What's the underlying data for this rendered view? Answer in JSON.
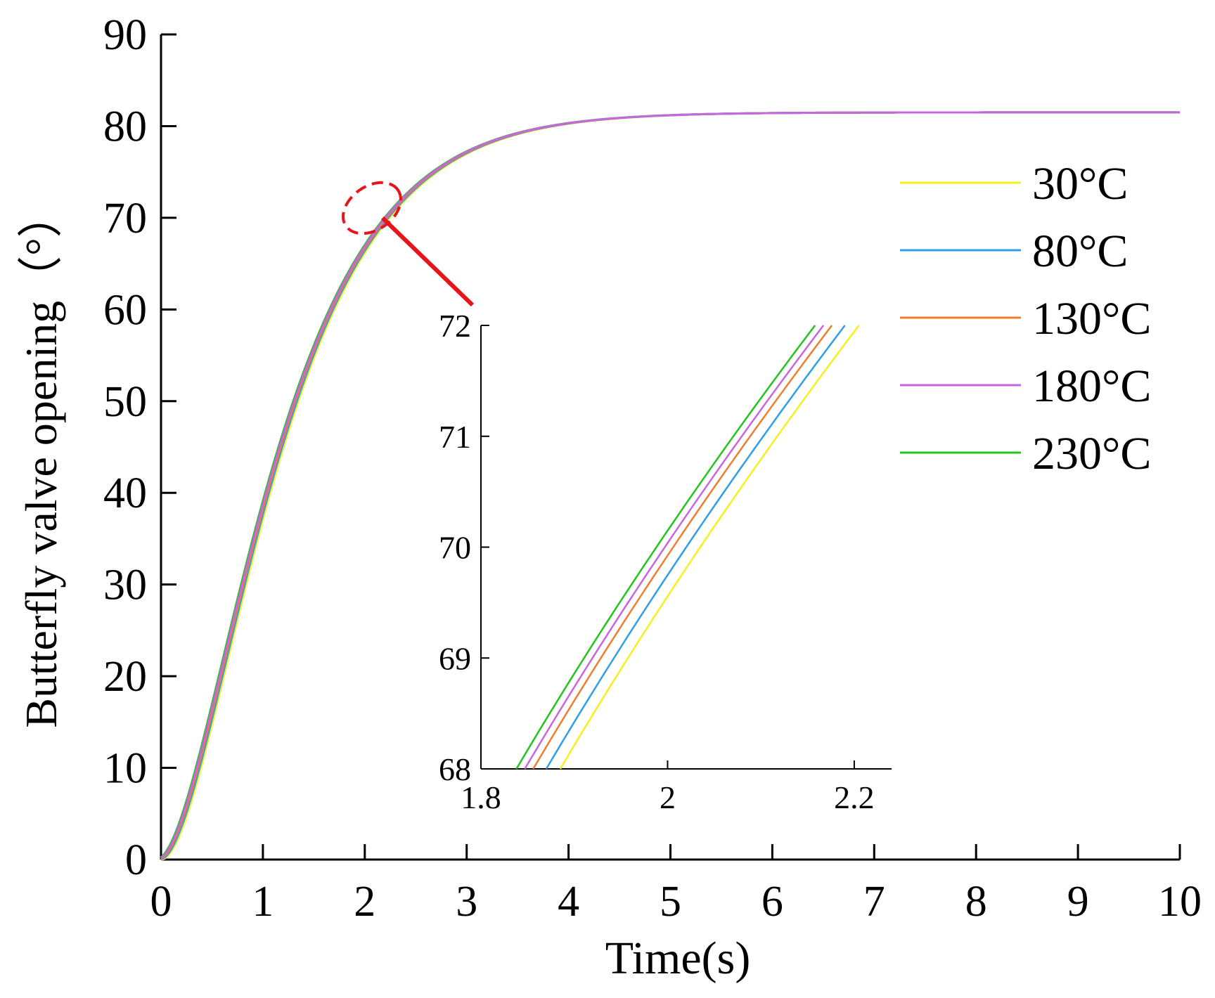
{
  "chart_data": [
    {
      "id": "main",
      "type": "line",
      "title": "",
      "xlabel": "Time(s)",
      "ylabel": "Butterfly valve opening（°）",
      "xlim": [
        0,
        10
      ],
      "ylim": [
        0,
        90
      ],
      "xticks": [
        0,
        1,
        2,
        3,
        4,
        5,
        6,
        7,
        8,
        9,
        10
      ],
      "yticks": [
        0,
        10,
        20,
        30,
        40,
        50,
        60,
        70,
        80,
        90
      ],
      "grid": false,
      "legend_position": "right",
      "model": {
        "final_value": 81.5,
        "time_constant": 0.65
      },
      "series": [
        {
          "name": "30°C",
          "color": "#f7f01e",
          "time_shift": 0.0
        },
        {
          "name": "80°C",
          "color": "#2f9ee8",
          "time_shift": -0.014
        },
        {
          "name": "130°C",
          "color": "#f07d2e",
          "time_shift": -0.028
        },
        {
          "name": "180°C",
          "color": "#c766e0",
          "time_shift": -0.04
        },
        {
          "name": "230°C",
          "color": "#22c41e",
          "time_shift": -0.05
        }
      ],
      "annotation": "zoomed region around t ≈ 2 s, opening ≈ 70°"
    },
    {
      "id": "inset",
      "type": "line",
      "title": "",
      "xlim": [
        1.8,
        2.24
      ],
      "ylim": [
        68,
        72
      ],
      "xticks": [
        1.8,
        2,
        2.2
      ],
      "xtick_labels": [
        "1.8",
        "2",
        "2.2"
      ],
      "yticks": [
        68,
        69,
        70,
        71,
        72
      ],
      "series": [
        {
          "name": "30°C",
          "color": "#f7f01e",
          "points": [
            [
              1.885,
              68
            ],
            [
              2.025,
              70
            ],
            [
              2.205,
              72
            ]
          ]
        },
        {
          "name": "80°C",
          "color": "#2f9ee8",
          "points": [
            [
              1.87,
              68
            ],
            [
              2.01,
              70
            ],
            [
              2.19,
              72
            ]
          ]
        },
        {
          "name": "130°C",
          "color": "#f07d2e",
          "points": [
            [
              1.856,
              68
            ],
            [
              1.996,
              70
            ],
            [
              2.176,
              72
            ]
          ]
        },
        {
          "name": "180°C",
          "color": "#c766e0",
          "points": [
            [
              1.847,
              68
            ],
            [
              1.987,
              70
            ],
            [
              2.167,
              72
            ]
          ]
        },
        {
          "name": "230°C",
          "color": "#22c41e",
          "points": [
            [
              1.838,
              68
            ],
            [
              1.978,
              70
            ],
            [
              2.158,
              72
            ]
          ]
        }
      ]
    }
  ],
  "colors": {
    "axis": "#000000",
    "annotation": "#e8141b"
  }
}
